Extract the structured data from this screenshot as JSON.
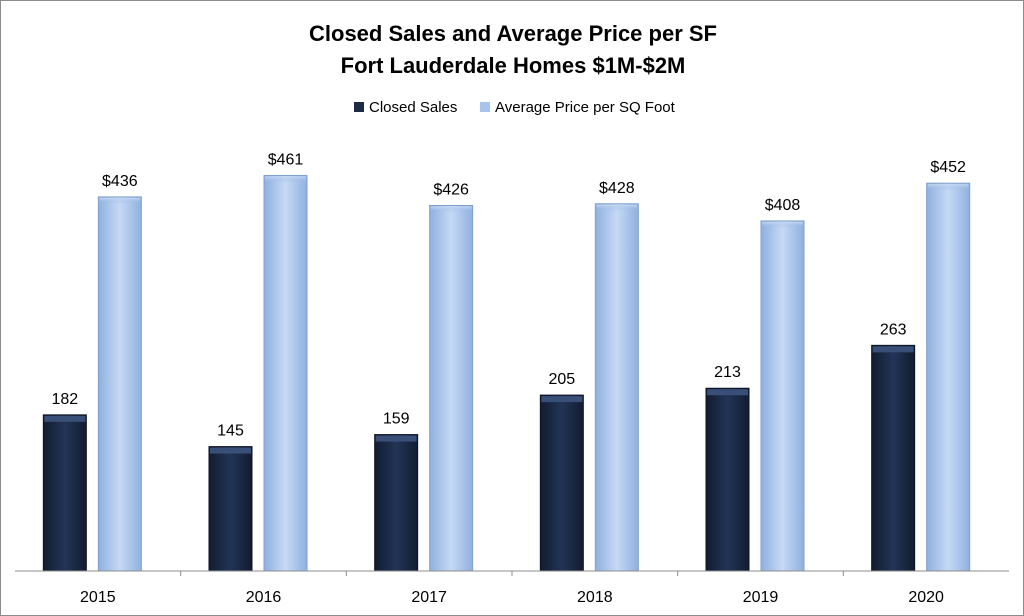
{
  "chart_data": {
    "type": "bar",
    "title": "Closed Sales and Average Price per SF",
    "subtitle": "Fort Lauderdale Homes $1M-$2M",
    "categories": [
      "2015",
      "2016",
      "2017",
      "2018",
      "2019",
      "2020"
    ],
    "series": [
      {
        "name": "Closed Sales",
        "values": [
          182,
          145,
          159,
          205,
          213,
          263
        ],
        "labels": [
          "182",
          "145",
          "159",
          "205",
          "213",
          "263"
        ],
        "color": "#1b2a45"
      },
      {
        "name": "Average Price per SQ Foot",
        "values": [
          436,
          461,
          426,
          428,
          408,
          452
        ],
        "labels": [
          "$436",
          "$461",
          "$426",
          "$428",
          "$408",
          "$452"
        ],
        "color": "#a9c4ec"
      }
    ],
    "ylim": [
      0,
      500
    ],
    "xlabel": "",
    "ylabel": "",
    "legend_position": "top-center",
    "grid": false
  }
}
